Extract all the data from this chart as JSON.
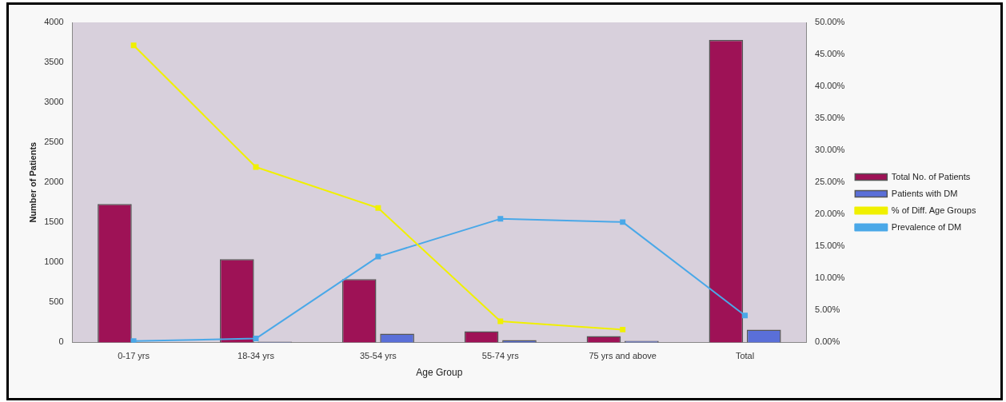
{
  "chart_data": {
    "type": "bar",
    "xlabel": "Age Group",
    "ylabel": "Number of Patients",
    "categories": [
      "0-17 yrs",
      "18-34 yrs",
      "35-54 yrs",
      "55-74 yrs",
      "75 yrs and above",
      "Total"
    ],
    "series": [
      {
        "name": "Total No. of Patients",
        "color": "#9e1256",
        "values": [
          1730,
          1040,
          790,
          140,
          80,
          3780
        ]
      },
      {
        "name": "Patients with DM",
        "color": "#5a6fd8",
        "values": [
          0,
          10,
          110,
          30,
          20,
          160
        ]
      },
      {
        "name": "% of Diff. Age Groups",
        "type": "line",
        "axis": "y2",
        "color": "#f0f000",
        "values": [
          46.4,
          27.4,
          21.0,
          3.3,
          2.0,
          null
        ]
      },
      {
        "name": "Prevalence of DM",
        "type": "line",
        "axis": "y2",
        "color": "#4aa8e8",
        "values": [
          0.2,
          0.6,
          13.4,
          19.3,
          18.8,
          4.2
        ]
      }
    ],
    "ylim": [
      0,
      4000
    ],
    "yticks": [
      0,
      500,
      1000,
      1500,
      2000,
      2500,
      3000,
      3500,
      4000
    ],
    "y2lim": [
      0,
      50
    ],
    "y2ticks": [
      {
        "value": 0,
        "label": "0.00%"
      },
      {
        "value": 5,
        "label": "5.00%"
      },
      {
        "value": 10,
        "label": "10.00%"
      },
      {
        "value": 15,
        "label": "15.00%"
      },
      {
        "value": 20,
        "label": "20.00%"
      },
      {
        "value": 25,
        "label": "25.00%"
      },
      {
        "value": 30,
        "label": "30.00%"
      },
      {
        "value": 35,
        "label": "35.00%"
      },
      {
        "value": 40,
        "label": "40.00%"
      },
      {
        "value": 45,
        "label": "45.00%"
      },
      {
        "value": 50,
        "label": "50.00%"
      }
    ],
    "grid": false,
    "legend": "right",
    "marker": "square"
  }
}
